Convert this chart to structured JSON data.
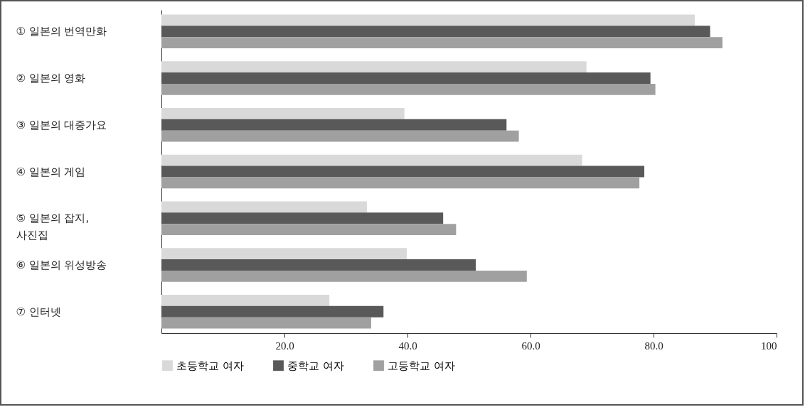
{
  "chart_data": {
    "type": "bar",
    "orientation": "horizontal",
    "categories": [
      "① 일본의 번역만화",
      "② 일본의 영화",
      "③ 일본의 대중가요",
      "④ 일본의 게임",
      "⑤ 일본의 잡지,\n사진집",
      "⑥ 일본의 위성방송",
      "⑦ 인터넷"
    ],
    "series": [
      {
        "name": "초등학교 여자",
        "color": "#d9d9d9",
        "values": [
          86.7,
          69.1,
          39.5,
          68.4,
          33.4,
          39.9,
          27.3
        ]
      },
      {
        "name": "중학교 여자",
        "color": "#595959",
        "values": [
          89.2,
          79.5,
          56.1,
          78.5,
          45.8,
          51.1,
          36.1
        ]
      },
      {
        "name": "고등학교 여자",
        "color": "#a0a0a0",
        "values": [
          91.2,
          80.3,
          58.1,
          77.7,
          47.9,
          59.4,
          34.1
        ]
      }
    ],
    "xlim": [
      0,
      100
    ],
    "xticks": [
      {
        "value": 20,
        "label": "20.0"
      },
      {
        "value": 40,
        "label": "40.0"
      },
      {
        "value": 60,
        "label": "60.0"
      },
      {
        "value": 80,
        "label": "80.0"
      },
      100
    ],
    "grid": false,
    "legend": "bottom"
  }
}
